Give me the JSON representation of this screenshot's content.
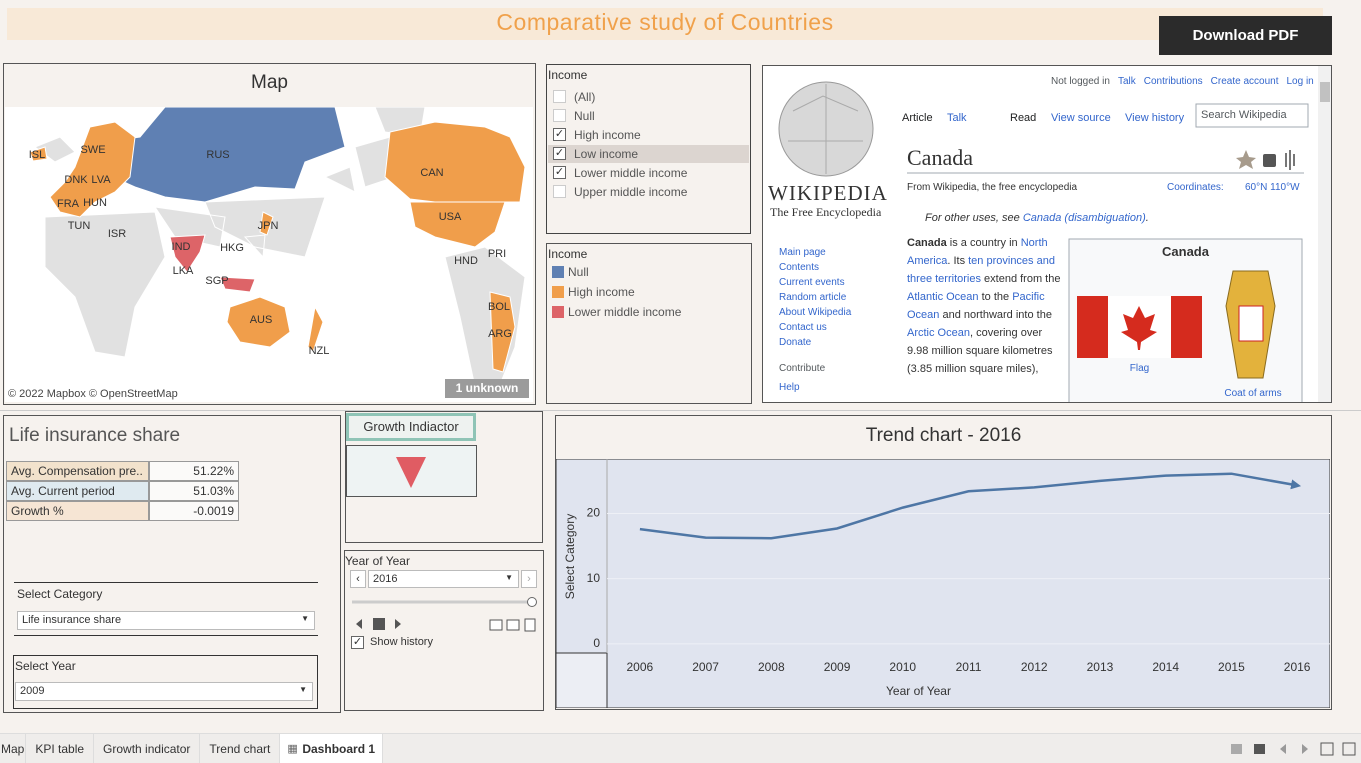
{
  "header": {
    "title": "Comparative study of Countries",
    "download": "Download PDF"
  },
  "map": {
    "title": "Map",
    "labels": [
      "ISL",
      "SWE",
      "DNK",
      "LVA",
      "RUS",
      "FRA",
      "HUN",
      "TUN",
      "ISR",
      "CAN",
      "USA",
      "JPN",
      "IND",
      "HKG",
      "LKA",
      "SGP",
      "HND",
      "PRI",
      "AUS",
      "NZL",
      "BOL",
      "ARG"
    ],
    "attribution": "© 2022 Mapbox © OpenStreetMap",
    "unknown": "1 unknown"
  },
  "income_filter": {
    "title": "Income",
    "options": [
      {
        "label": "(All)",
        "checked": false
      },
      {
        "label": "Null",
        "checked": false
      },
      {
        "label": "High income",
        "checked": true
      },
      {
        "label": "Low income",
        "checked": true
      },
      {
        "label": "Lower middle income",
        "checked": true
      },
      {
        "label": "Upper middle income",
        "checked": false
      }
    ],
    "highlighted": "Low income"
  },
  "income_legend": {
    "title": "Income",
    "items": [
      {
        "label": "Null",
        "color": "#5f80b3"
      },
      {
        "label": "High income",
        "color": "#f09e4b"
      },
      {
        "label": "Lower middle income",
        "color": "#dd6468"
      }
    ]
  },
  "wikipedia": {
    "user_links": [
      "Not logged in",
      "Talk",
      "Contributions",
      "Create account",
      "Log in"
    ],
    "wordmark": "WIKIPEDIA",
    "tagline": "The Free Encyclopedia",
    "tabs": [
      "Article",
      "Talk",
      "Read",
      "View source",
      "View history"
    ],
    "search": "Search Wikipedia",
    "title": "Canada",
    "from": "From Wikipedia, the free encyclopedia",
    "coordinates_label": "Coordinates:",
    "coordinates": "60°N 110°W",
    "hatnote": [
      {
        "text": "For other uses, see ",
        "style": "plain"
      },
      {
        "text": "Canada (disambiguation)",
        "style": "link"
      },
      {
        "text": ".",
        "style": "plain"
      }
    ],
    "nav": [
      "Main page",
      "Contents",
      "Current events",
      "Random article",
      "About Wikipedia",
      "Contact us",
      "Donate"
    ],
    "contribute": "Contribute",
    "contribute_links": [
      "Help"
    ],
    "lead": [
      {
        "text": "Canada",
        "style": "bold"
      },
      {
        "text": " is a country in ",
        "style": "plain"
      },
      {
        "text": "North America",
        "style": "link"
      },
      {
        "text": ". Its ",
        "style": "plain"
      },
      {
        "text": "ten provinces and three territories",
        "style": "link"
      },
      {
        "text": " extend from the ",
        "style": "plain"
      },
      {
        "text": "Atlantic Ocean",
        "style": "link"
      },
      {
        "text": " to the ",
        "style": "plain"
      },
      {
        "text": "Pacific Ocean",
        "style": "link"
      },
      {
        "text": " and northward into the ",
        "style": "plain"
      },
      {
        "text": "Arctic Ocean",
        "style": "link"
      },
      {
        "text": ", covering over 9.98 million square kilometres (3.85 million square miles),",
        "style": "plain"
      }
    ],
    "infobox": {
      "title": "Canada",
      "flag": "Flag",
      "arms": "Coat of arms"
    }
  },
  "kpi": {
    "title": "Life insurance share",
    "rows": [
      [
        "Avg. Compensation pre..",
        "51.22%"
      ],
      [
        "Avg. Current period",
        "51.03%"
      ],
      [
        "Growth %",
        "-0.0019"
      ]
    ]
  },
  "growth": {
    "title": "Growth Indiactor"
  },
  "year_control": {
    "title": "Year of Year",
    "value": "2016",
    "show_history": "Show history",
    "show_history_checked": true
  },
  "select_category": {
    "title": "Select Category",
    "value": "Life insurance share"
  },
  "select_year": {
    "title": "Select Year",
    "value": "2009"
  },
  "chart_data": {
    "type": "line",
    "title": "Trend chart - 2016",
    "x_label": "Year of Year",
    "y_label": "Select Category",
    "categories": [
      "2006",
      "2007",
      "2008",
      "2009",
      "2010",
      "2011",
      "2012",
      "2013",
      "2014",
      "2015",
      "2016"
    ],
    "values": [
      17.6,
      16.3,
      16.2,
      17.7,
      20.9,
      23.4,
      24.0,
      25.0,
      25.8,
      26.1,
      24.3
    ],
    "color": "#4e76a5",
    "ylim": [
      -1.4,
      28.2
    ],
    "yticks": [
      0,
      10,
      20
    ],
    "grid": true
  },
  "tabs": {
    "items": [
      "Map",
      "KPI table",
      "Growth indicator",
      "Trend chart",
      "Dashboard 1"
    ],
    "active": "Dashboard 1"
  }
}
